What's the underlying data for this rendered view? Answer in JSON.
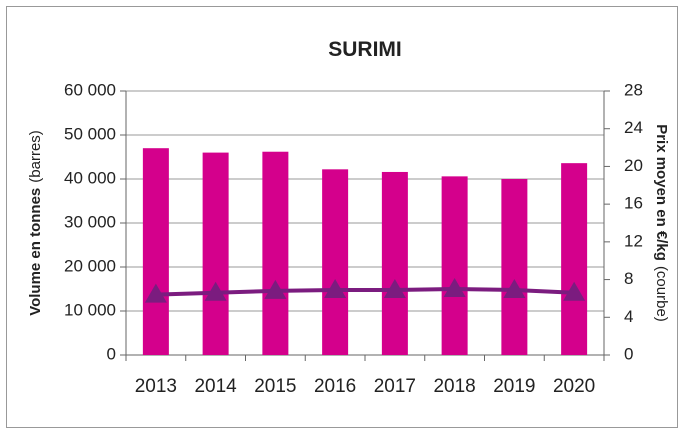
{
  "chart_data": {
    "type": "bar",
    "title": "SURIMI",
    "ylabel": {
      "main": "Volume en tonnes",
      "unit": "(barres)"
    },
    "y2label": {
      "main": "Prix moyen en €/kg",
      "unit": "(courbe)"
    },
    "categories": [
      "2013",
      "2014",
      "2015",
      "2016",
      "2017",
      "2018",
      "2019",
      "2020"
    ],
    "series": [
      {
        "type": "bar",
        "color": "#d4008c",
        "values": [
          47000,
          46000,
          46200,
          42200,
          41600,
          40600,
          40000,
          43600
        ]
      },
      {
        "type": "line",
        "axis": "y2",
        "color": "#7b1c7f",
        "values": [
          6.4,
          6.6,
          6.8,
          6.9,
          6.9,
          7.0,
          6.9,
          6.6
        ]
      }
    ],
    "ylim": [
      0,
      60000
    ],
    "yticks": [
      0,
      {
        "value": 10000,
        "label": "10 000"
      },
      {
        "value": 20000,
        "label": "20 000"
      },
      {
        "value": 30000,
        "label": "30 000"
      },
      {
        "value": 40000,
        "label": "40 000"
      },
      {
        "value": 50000,
        "label": "50 000"
      },
      {
        "value": 60000,
        "label": "60 000"
      }
    ],
    "y2lim": [
      0,
      28
    ],
    "y2ticks": [
      0,
      4,
      8,
      12,
      16,
      20,
      24,
      28
    ],
    "grid": true
  }
}
